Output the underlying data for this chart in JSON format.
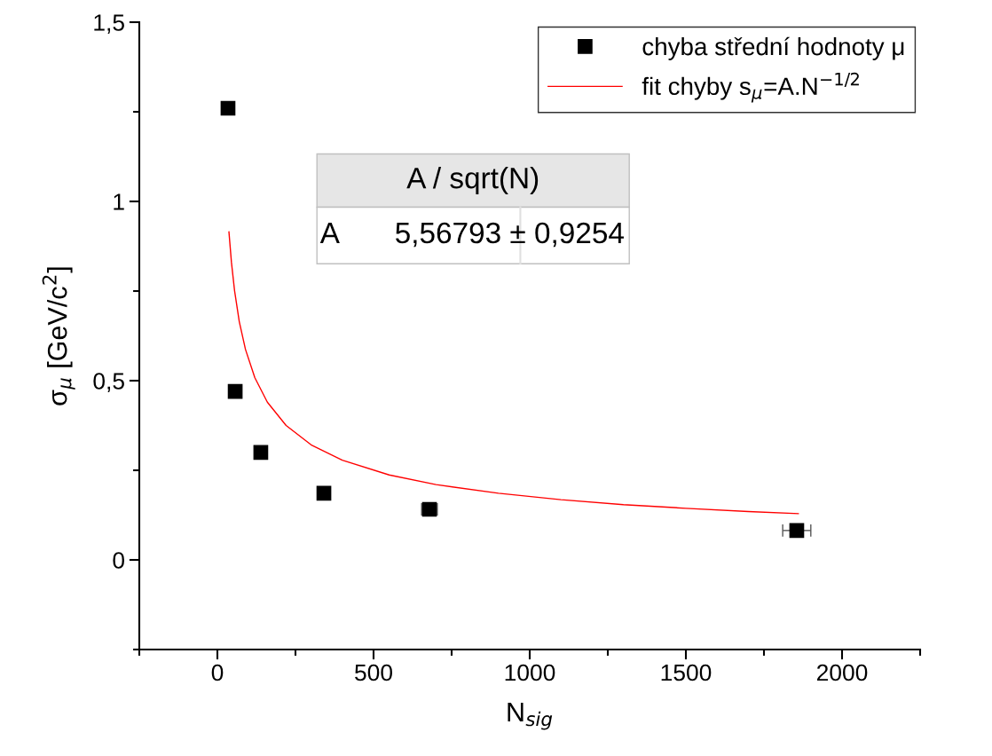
{
  "chart_data": {
    "type": "scatter",
    "xlabel": "N$_{sig}$",
    "ylabel": "σ$_{μ}$ [GeV/c$^{2}$]",
    "xlim": [
      -250,
      2250
    ],
    "xticks": [
      0,
      500,
      1000,
      1500,
      2000
    ],
    "ylim": [
      -0.25,
      1.5
    ],
    "yticks": [
      {
        "value": 0,
        "label": "0"
      },
      {
        "value": 0.5,
        "label": "0,5"
      },
      {
        "value": 1,
        "label": "1"
      },
      {
        "value": 1.5,
        "label": "1,5"
      }
    ],
    "grid": false,
    "legend": "top right",
    "series": [
      {
        "name": "chyba střední hodnoty μ",
        "color": "#000000",
        "marker": "square",
        "x": [
          34,
          57,
          139,
          341,
          679,
          1855
        ],
        "values": [
          1.26,
          0.47,
          0.3,
          0.186,
          0.141,
          0.082
        ],
        "xerrors": [
          null,
          null,
          null,
          null,
          25,
          45
        ]
      },
      {
        "name": "fit chyby s$_{μ}$=A.N$^{−1/2}$",
        "type": "line",
        "color": "#ff0000",
        "marker": "none",
        "line_style": "solid",
        "x": [
          37,
          45,
          55,
          70,
          90,
          120,
          160,
          220,
          300,
          400,
          550,
          700,
          900,
          1100,
          1300,
          1500,
          1700,
          1860
        ],
        "values": [
          0.915,
          0.83,
          0.751,
          0.665,
          0.587,
          0.508,
          0.44,
          0.375,
          0.321,
          0.278,
          0.237,
          0.21,
          0.186,
          0.168,
          0.154,
          0.144,
          0.135,
          0.129
        ]
      }
    ],
    "annotations": [
      "A / sqrt(N)",
      "A",
      "5,56793 ± 0,9254"
    ]
  }
}
